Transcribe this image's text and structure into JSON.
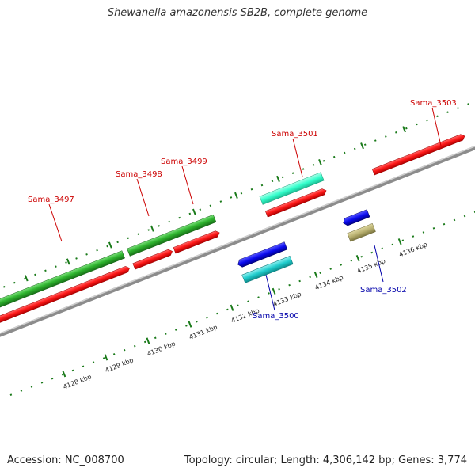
{
  "title": "Shewanella amazonensis SB2B, complete genome",
  "footer": {
    "accession": "Accession: NC_008700",
    "topology": "Topology: circular; Length: 4,306,142 bp; Genes: 3,774"
  },
  "genes_forward": [
    {
      "label": "Sama_3497"
    },
    {
      "label": "Sama_3498"
    },
    {
      "label": "Sama_3499"
    },
    {
      "label": "Sama_3501"
    },
    {
      "label": "Sama_3503"
    }
  ],
  "genes_reverse": [
    {
      "label": "Sama_3500"
    },
    {
      "label": "Sama_3502"
    }
  ],
  "scale_ticks": [
    "4128 kbp",
    "4129 kbp",
    "4130 kbp",
    "4131 kbp",
    "4132 kbp",
    "4133 kbp",
    "4134 kbp",
    "4135 kbp",
    "4136 kbp"
  ],
  "colors": {
    "forward_label": "#cc0000",
    "reverse_label": "#0000aa",
    "cds_red": "#ff1a1a",
    "rna_green": "#2fb52f",
    "teal": "#33ffcc",
    "blue": "#0a0aee",
    "cyan": "#1ecccc",
    "olive": "#b8b070",
    "backbone": "#888888",
    "dots": "#1a7a1a"
  }
}
